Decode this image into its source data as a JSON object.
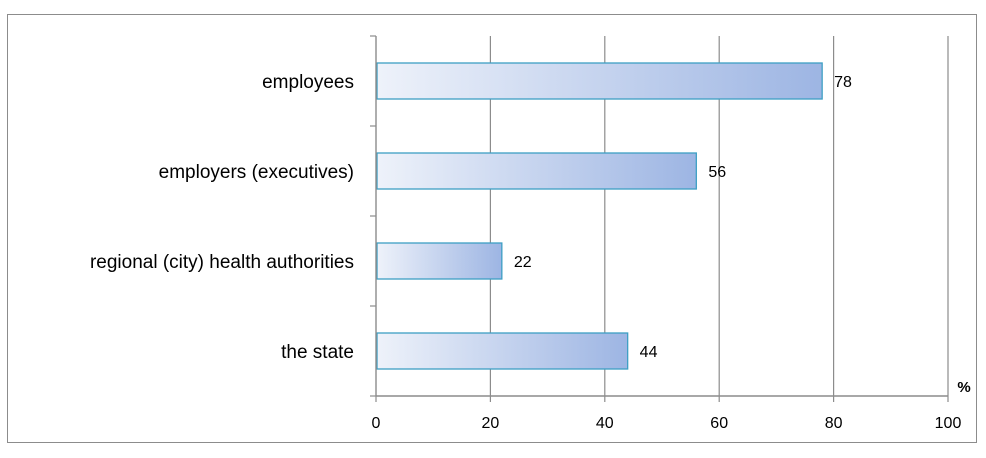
{
  "chart_data": {
    "type": "bar",
    "orientation": "horizontal",
    "categories": [
      "employees",
      "employers (executives)",
      "regional (city) health authorities",
      "the state"
    ],
    "values": [
      78,
      56,
      22,
      44
    ],
    "data_labels": [
      "78",
      "56",
      "22",
      "44"
    ],
    "x_ticks": [
      "0",
      "20",
      "40",
      "60",
      "80",
      "100"
    ],
    "xlim": [
      0,
      100
    ],
    "x_unit": "%",
    "grid": "vertical",
    "legend": "none",
    "colors": {
      "bar_fill_start": "#eef2fa",
      "bar_fill_end": "#9db5e3",
      "bar_border": "#3d9fc4",
      "gridline": "#8c8c8c",
      "axis": "#8c8c8c"
    }
  }
}
